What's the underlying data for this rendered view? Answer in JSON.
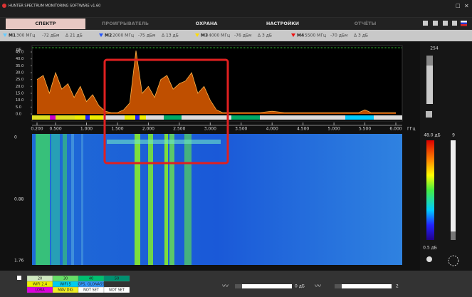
{
  "window": {
    "title": "HUNTER SPECTRUM MONITORING SOFTWARE v1.60"
  },
  "tabs": [
    "СПЕКТР",
    "ПРОИГРЫВАТЕЛЬ",
    "ОХРАНА",
    "НАСТРОЙКИ",
    "ОТЧЁТЫ"
  ],
  "markers": [
    {
      "name": "M1",
      "freq": "300 МГц",
      "level": "-72 дБм",
      "delta": "Δ 21 дБ",
      "color": "#66ccff"
    },
    {
      "name": "M2",
      "freq": "2000 МГц",
      "level": "-75 дБм",
      "delta": "Δ 13 дБ",
      "color": "#2255ff"
    },
    {
      "name": "M3",
      "freq": "4000 МГц",
      "level": "-76 дБм",
      "delta": "Δ 3 дБ",
      "color": "#ffdd00"
    },
    {
      "name": "M4",
      "freq": "5500 МГц",
      "level": "-70 дБм",
      "delta": "Δ 3 дБ",
      "color": "#ee1111"
    }
  ],
  "chart_data": {
    "type": "area",
    "y_unit": "дБ",
    "x_unit": "ГГц",
    "color": "#ff6a00",
    "line_color": "#ffb347",
    "x": [
      0.2,
      0.3,
      0.4,
      0.5,
      0.6,
      0.7,
      0.8,
      0.9,
      1.0,
      1.1,
      1.2,
      1.3,
      1.4,
      1.5,
      1.6,
      1.7,
      1.8,
      1.9,
      2.0,
      2.1,
      2.2,
      2.3,
      2.4,
      2.5,
      2.6,
      2.7,
      2.8,
      2.9,
      3.0,
      3.1,
      3.2,
      3.4,
      3.6,
      3.8,
      4.0,
      4.2,
      4.4,
      4.6,
      4.8,
      5.0,
      5.2,
      5.4,
      5.5,
      5.6,
      5.8,
      6.0
    ],
    "values": [
      25,
      28,
      15,
      30,
      18,
      22,
      12,
      20,
      9,
      14,
      6,
      2,
      1,
      1,
      3,
      8,
      46,
      15,
      20,
      12,
      25,
      28,
      18,
      22,
      24,
      30,
      15,
      20,
      10,
      3,
      1,
      1,
      1,
      1,
      2,
      1,
      1,
      1,
      1,
      1,
      1,
      1,
      3,
      1,
      1,
      1
    ],
    "xlim": [
      0.2,
      6.0
    ],
    "ylim": [
      0,
      45
    ],
    "xticks": [
      {
        "value": 0.2,
        "label": "0.200"
      },
      {
        "value": 0.5,
        "label": "0.500"
      },
      {
        "value": 1,
        "label": "1.000"
      },
      {
        "value": 1.5,
        "label": "1.500"
      },
      {
        "value": 2,
        "label": "2.000"
      },
      {
        "value": 2.5,
        "label": "2.500"
      },
      {
        "value": 3,
        "label": "3.000"
      },
      {
        "value": 3.5,
        "label": "3.500"
      },
      {
        "value": 4,
        "label": "4.000"
      },
      {
        "value": 4.5,
        "label": "4.500"
      },
      {
        "value": 5,
        "label": "5.000"
      },
      {
        "value": 5.5,
        "label": "5.500"
      },
      {
        "value": 6,
        "label": "6.000"
      }
    ],
    "yticks": [
      {
        "value": 0,
        "label": "0.0"
      },
      {
        "value": 5,
        "label": "5.0"
      },
      {
        "value": 10,
        "label": "10.0"
      },
      {
        "value": 15,
        "label": "15.0"
      },
      {
        "value": 20,
        "label": "20.0"
      },
      {
        "value": 25,
        "label": "25.0"
      },
      {
        "value": 30,
        "label": "30.0"
      },
      {
        "value": 35,
        "label": "35.0"
      },
      {
        "value": 40,
        "label": "40.0"
      },
      {
        "value": 45,
        "label": "45.0"
      }
    ]
  },
  "waterfall": {
    "time_labels": [
      "0",
      "0.88",
      "1.76"
    ]
  },
  "side_panel": {
    "counter": "254",
    "max_level": "48.0 дБ",
    "gain": "9",
    "min_level": "0.5 дБ"
  },
  "legend_table": {
    "rows": [
      [
        "20",
        "30",
        "40",
        "50"
      ],
      [
        "WIFI 2.4",
        "WIFI 5",
        "GPS, GLONASS"
      ],
      [
        "LORA",
        "MAV DIG",
        "NOT SET",
        "NOT SET"
      ]
    ]
  },
  "footer": {
    "level": "0 дБ",
    "value": "2"
  }
}
